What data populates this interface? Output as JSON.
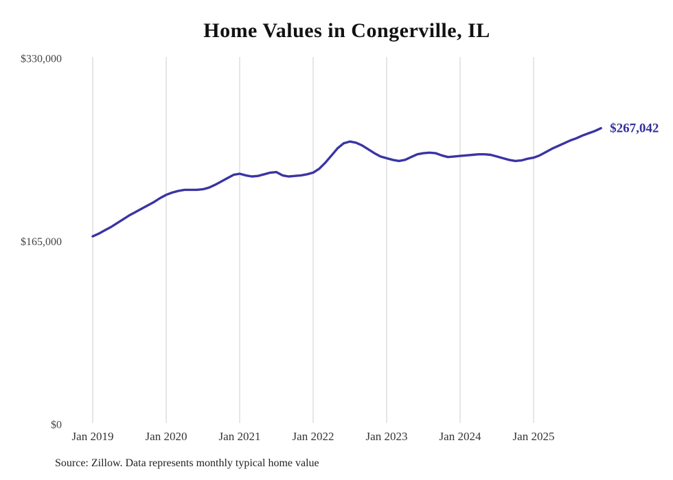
{
  "chart_data": {
    "type": "line",
    "title": "Home Values in Congerville, IL",
    "source_note": "Source: Zillow. Data represents monthly typical home value",
    "end_label": "$267,042",
    "latest_value": 267042,
    "ylim": [
      0,
      330000
    ],
    "grid": "vertical-only",
    "legend": "none",
    "y_ticks": [
      {
        "label": "$330,000",
        "value": 330000
      },
      {
        "label": "$165,000",
        "value": 165000
      },
      {
        "label": "$0",
        "value": 0
      }
    ],
    "x_tick_labels": [
      "Jan 2019",
      "Jan 2020",
      "Jan 2021",
      "Jan 2022",
      "Jan 2023",
      "Jan 2024",
      "Jan 2025"
    ],
    "x_tick_every": 12,
    "x": [
      "2019-01",
      "2019-02",
      "2019-03",
      "2019-04",
      "2019-05",
      "2019-06",
      "2019-07",
      "2019-08",
      "2019-09",
      "2019-10",
      "2019-11",
      "2019-12",
      "2020-01",
      "2020-02",
      "2020-03",
      "2020-04",
      "2020-05",
      "2020-06",
      "2020-07",
      "2020-08",
      "2020-09",
      "2020-10",
      "2020-11",
      "2020-12",
      "2021-01",
      "2021-02",
      "2021-03",
      "2021-04",
      "2021-05",
      "2021-06",
      "2021-07",
      "2021-08",
      "2021-09",
      "2021-10",
      "2021-11",
      "2021-12",
      "2022-01",
      "2022-02",
      "2022-03",
      "2022-04",
      "2022-05",
      "2022-06",
      "2022-07",
      "2022-08",
      "2022-09",
      "2022-10",
      "2022-11",
      "2022-12",
      "2023-01",
      "2023-02",
      "2023-03",
      "2023-04",
      "2023-05",
      "2023-06",
      "2023-07",
      "2023-08",
      "2023-09",
      "2023-10",
      "2023-11",
      "2023-12",
      "2024-01",
      "2024-02",
      "2024-03",
      "2024-04",
      "2024-05",
      "2024-06",
      "2024-07",
      "2024-08",
      "2024-09",
      "2024-10",
      "2024-11",
      "2024-12",
      "2025-01",
      "2025-02",
      "2025-03",
      "2025-04",
      "2025-05",
      "2025-06",
      "2025-07",
      "2025-08",
      "2025-09",
      "2025-10",
      "2025-11",
      "2025-12"
    ],
    "values": [
      169500,
      172000,
      175000,
      178000,
      181500,
      185000,
      188500,
      191500,
      194500,
      197500,
      200500,
      204000,
      207000,
      209000,
      210500,
      211500,
      211500,
      211500,
      212000,
      213500,
      216000,
      219000,
      222000,
      225000,
      226000,
      224500,
      223500,
      224000,
      225500,
      227000,
      227500,
      224500,
      223500,
      224000,
      224500,
      225500,
      227000,
      230500,
      236000,
      242500,
      249000,
      253500,
      255000,
      254000,
      251500,
      248000,
      244500,
      241500,
      240000,
      238500,
      237500,
      238500,
      241000,
      243500,
      244500,
      245000,
      244500,
      242500,
      241000,
      241500,
      242000,
      242500,
      243000,
      243500,
      243500,
      243000,
      241500,
      240000,
      238500,
      237500,
      238000,
      239500,
      240500,
      242500,
      245500,
      248500,
      251000,
      253500,
      256000,
      258000,
      260500,
      262500,
      264500,
      267042
    ],
    "colors": {
      "line": "#3a34a3",
      "end_label": "#34309b",
      "grid": "#cccccc",
      "title": "#111111",
      "tick_text": "#444444",
      "source_text": "#222222"
    }
  }
}
